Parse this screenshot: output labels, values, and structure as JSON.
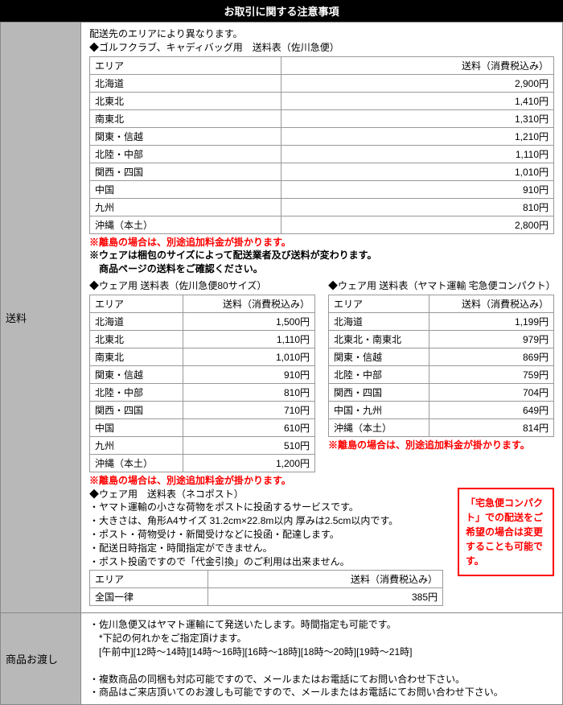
{
  "header": "お取引に関する注意事項",
  "shipping": {
    "label": "送料",
    "intro": "配送先のエリアにより異なります。",
    "table1_title": "◆ゴルフクラブ、キャディバッグ用　送料表（佐川急便）",
    "cols": {
      "area": "エリア",
      "price": "送料（消費税込み）"
    },
    "table1_rows": [
      {
        "a": "北海道",
        "p": "2,900円"
      },
      {
        "a": "北東北",
        "p": "1,410円"
      },
      {
        "a": "南東北",
        "p": "1,310円"
      },
      {
        "a": "関東・信越",
        "p": "1,210円"
      },
      {
        "a": "北陸・中部",
        "p": "1,110円"
      },
      {
        "a": "関西・四国",
        "p": "1,010円"
      },
      {
        "a": "中国",
        "p": "910円"
      },
      {
        "a": "九州",
        "p": "810円"
      },
      {
        "a": "沖縄（本土）",
        "p": "2,800円"
      }
    ],
    "note_island": "※離島の場合は、別途追加料金が掛かります。",
    "note_wear1": "※ウェアは梱包のサイズによって配送業者及び送料が変わります。",
    "note_wear2": "　商品ページの送料をご確認ください。",
    "table2_title": "◆ウェア用 送料表（佐川急便80サイズ）",
    "table2_rows": [
      {
        "a": "北海道",
        "p": "1,500円"
      },
      {
        "a": "北東北",
        "p": "1,110円"
      },
      {
        "a": "南東北",
        "p": "1,010円"
      },
      {
        "a": "関東・信越",
        "p": "910円"
      },
      {
        "a": "北陸・中部",
        "p": "810円"
      },
      {
        "a": "関西・四国",
        "p": "710円"
      },
      {
        "a": "中国",
        "p": "610円"
      },
      {
        "a": "九州",
        "p": "510円"
      },
      {
        "a": "沖縄（本土）",
        "p": "1,200円"
      }
    ],
    "table3_title": "◆ウェア用 送料表（ヤマト運輸 宅急便コンパクト）",
    "table3_rows": [
      {
        "a": "北海道",
        "p": "1,199円"
      },
      {
        "a": "北東北・南東北",
        "p": "979円"
      },
      {
        "a": "関東・信越",
        "p": "869円"
      },
      {
        "a": "北陸・中部",
        "p": "759円"
      },
      {
        "a": "関西・四国",
        "p": "704円"
      },
      {
        "a": "中国・九州",
        "p": "649円"
      },
      {
        "a": "沖縄（本土）",
        "p": "814円"
      }
    ],
    "nekopost_title": "◆ウェア用　送料表（ネコポスト）",
    "nekopost_notes": [
      "・ヤマト運輸の小さな荷物をポストに投函するサービスです。",
      "・大きさは、角形A4サイズ 31.2cm×22.8m以内 厚みは2.5cm以内です。",
      "・ポスト・荷物受け・新聞受けなどに投函・配達します。",
      "・配送日時指定・時間指定ができません。",
      "・ポスト投函ですので「代金引換」のご利用は出来ません。"
    ],
    "nekopost_row": {
      "a": "全国一律",
      "p": "385円"
    },
    "redbox": "「宅急便コンパクト」での配送をご希望の場合は変更することも可能です。"
  },
  "delivery": {
    "label": "商品お渡し",
    "lines": [
      "・佐川急便又はヤマト運輸にて発送いたします。時間指定も可能です。",
      "　*下記の何れかをご指定頂けます。",
      "　[午前中][12時～14時][14時～16時][16時～18時][18時～20時][19時～21時]",
      "",
      "・複数商品の同梱も対応可能ですので、メールまたはお電話にてお問い合わせ下さい。",
      "・商品はご来店頂いてのお渡しも可能ですので、メールまたはお電話にてお問い合わせ下さい。"
    ]
  },
  "colors": {
    "red": "#ff0000",
    "header_bg": "#000000",
    "sidebar_bg": "#b8b8b8",
    "border": "#999999"
  }
}
